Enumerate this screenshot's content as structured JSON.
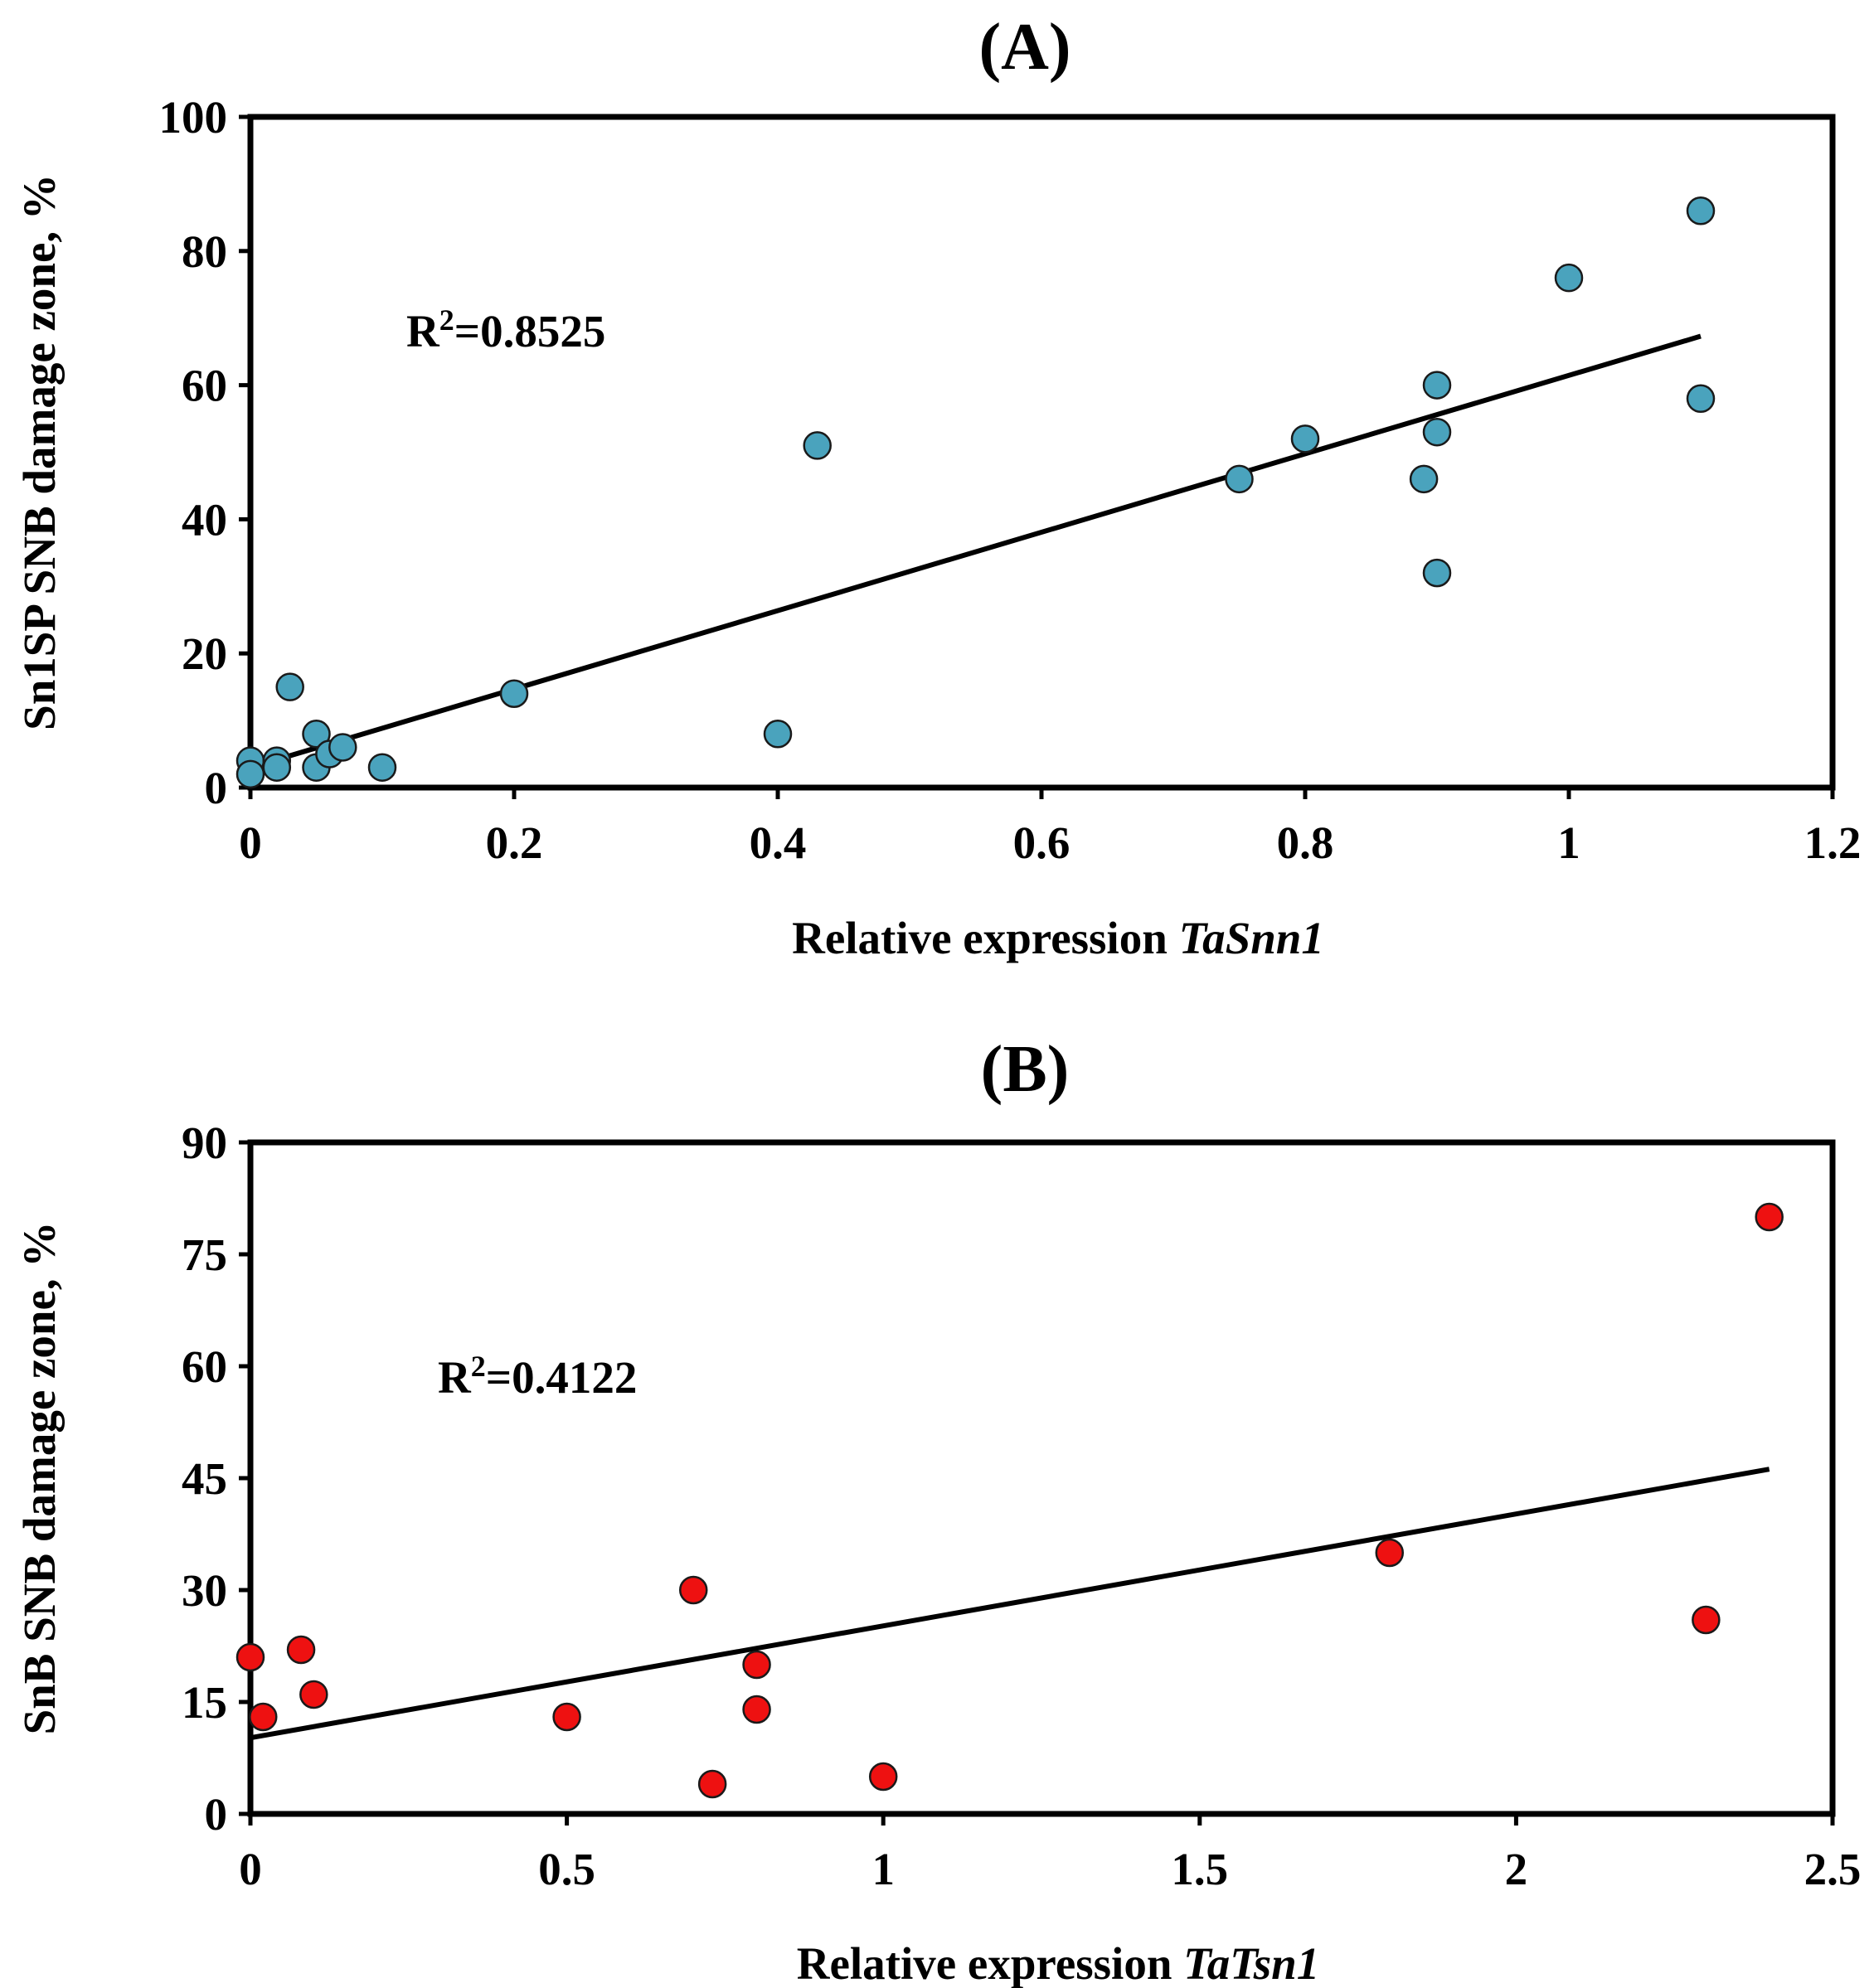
{
  "chart_data": [
    {
      "type": "scatter",
      "panel_label": "(A)",
      "xlabel": "Relative expression",
      "xlabel_italic": "TaSnn1",
      "ylabel": "Sn1SP SNB damage zone, %",
      "xlim": [
        0,
        1.2
      ],
      "ylim": [
        0,
        100
      ],
      "xticks": [
        0,
        0.2,
        0.4,
        0.6,
        0.8,
        1,
        1.2
      ],
      "xtick_labels": [
        "0",
        "0.2",
        "0.4",
        "0.6",
        "0.8",
        "1",
        "1.2"
      ],
      "yticks": [
        0,
        20,
        40,
        60,
        80,
        100
      ],
      "ytick_labels": [
        "0",
        "20",
        "40",
        "60",
        "80",
        "100"
      ],
      "grid": false,
      "marker_color": "#4aa3bd",
      "r2_text": "R",
      "r2_sup": "2",
      "r2_value": "=0.8525",
      "points": [
        {
          "x": 0,
          "y": 4
        },
        {
          "x": 0,
          "y": 2
        },
        {
          "x": 0.02,
          "y": 4
        },
        {
          "x": 0.02,
          "y": 3
        },
        {
          "x": 0.03,
          "y": 15
        },
        {
          "x": 0.05,
          "y": 8
        },
        {
          "x": 0.05,
          "y": 3
        },
        {
          "x": 0.06,
          "y": 5
        },
        {
          "x": 0.07,
          "y": 6
        },
        {
          "x": 0.1,
          "y": 3
        },
        {
          "x": 0.2,
          "y": 14
        },
        {
          "x": 0.4,
          "y": 8
        },
        {
          "x": 0.43,
          "y": 51
        },
        {
          "x": 0.75,
          "y": 46
        },
        {
          "x": 0.8,
          "y": 52
        },
        {
          "x": 0.89,
          "y": 46
        },
        {
          "x": 0.9,
          "y": 60
        },
        {
          "x": 0.9,
          "y": 53
        },
        {
          "x": 0.9,
          "y": 32
        },
        {
          "x": 1.0,
          "y": 76
        },
        {
          "x": 1.1,
          "y": 86
        },
        {
          "x": 1.1,
          "y": 58
        }
      ],
      "trendline": {
        "x": [
          0,
          1.1
        ],
        "y": [
          3,
          67.3
        ]
      }
    },
    {
      "type": "scatter",
      "panel_label": "(B)",
      "xlabel": "Relative expression",
      "xlabel_italic": "TaTsn1",
      "ylabel": "SnB SNB damage zone, %",
      "xlim": [
        0,
        2.5
      ],
      "ylim": [
        0,
        90
      ],
      "xticks": [
        0,
        0.5,
        1,
        1.5,
        2,
        2.5
      ],
      "xtick_labels": [
        "0",
        "0.5",
        "1",
        "1.5",
        "2",
        "2.5"
      ],
      "yticks": [
        0,
        15,
        30,
        45,
        60,
        75,
        90
      ],
      "ytick_labels": [
        "0",
        "15",
        "30",
        "45",
        "60",
        "75",
        "90"
      ],
      "grid": false,
      "marker_color": "#ee1111",
      "r2_text": "R",
      "r2_sup": "2",
      "r2_value": "=0.4122",
      "points": [
        {
          "x": 0,
          "y": 21
        },
        {
          "x": 0.02,
          "y": 13
        },
        {
          "x": 0.08,
          "y": 22
        },
        {
          "x": 0.1,
          "y": 16
        },
        {
          "x": 0.5,
          "y": 13
        },
        {
          "x": 0.7,
          "y": 30
        },
        {
          "x": 0.73,
          "y": 4
        },
        {
          "x": 0.8,
          "y": 20
        },
        {
          "x": 0.8,
          "y": 14
        },
        {
          "x": 1.0,
          "y": 5
        },
        {
          "x": 1.8,
          "y": 35
        },
        {
          "x": 2.3,
          "y": 26
        },
        {
          "x": 2.4,
          "y": 80
        }
      ],
      "trendline": {
        "x": [
          0,
          2.4
        ],
        "y": [
          10.2,
          46.2
        ]
      }
    }
  ]
}
